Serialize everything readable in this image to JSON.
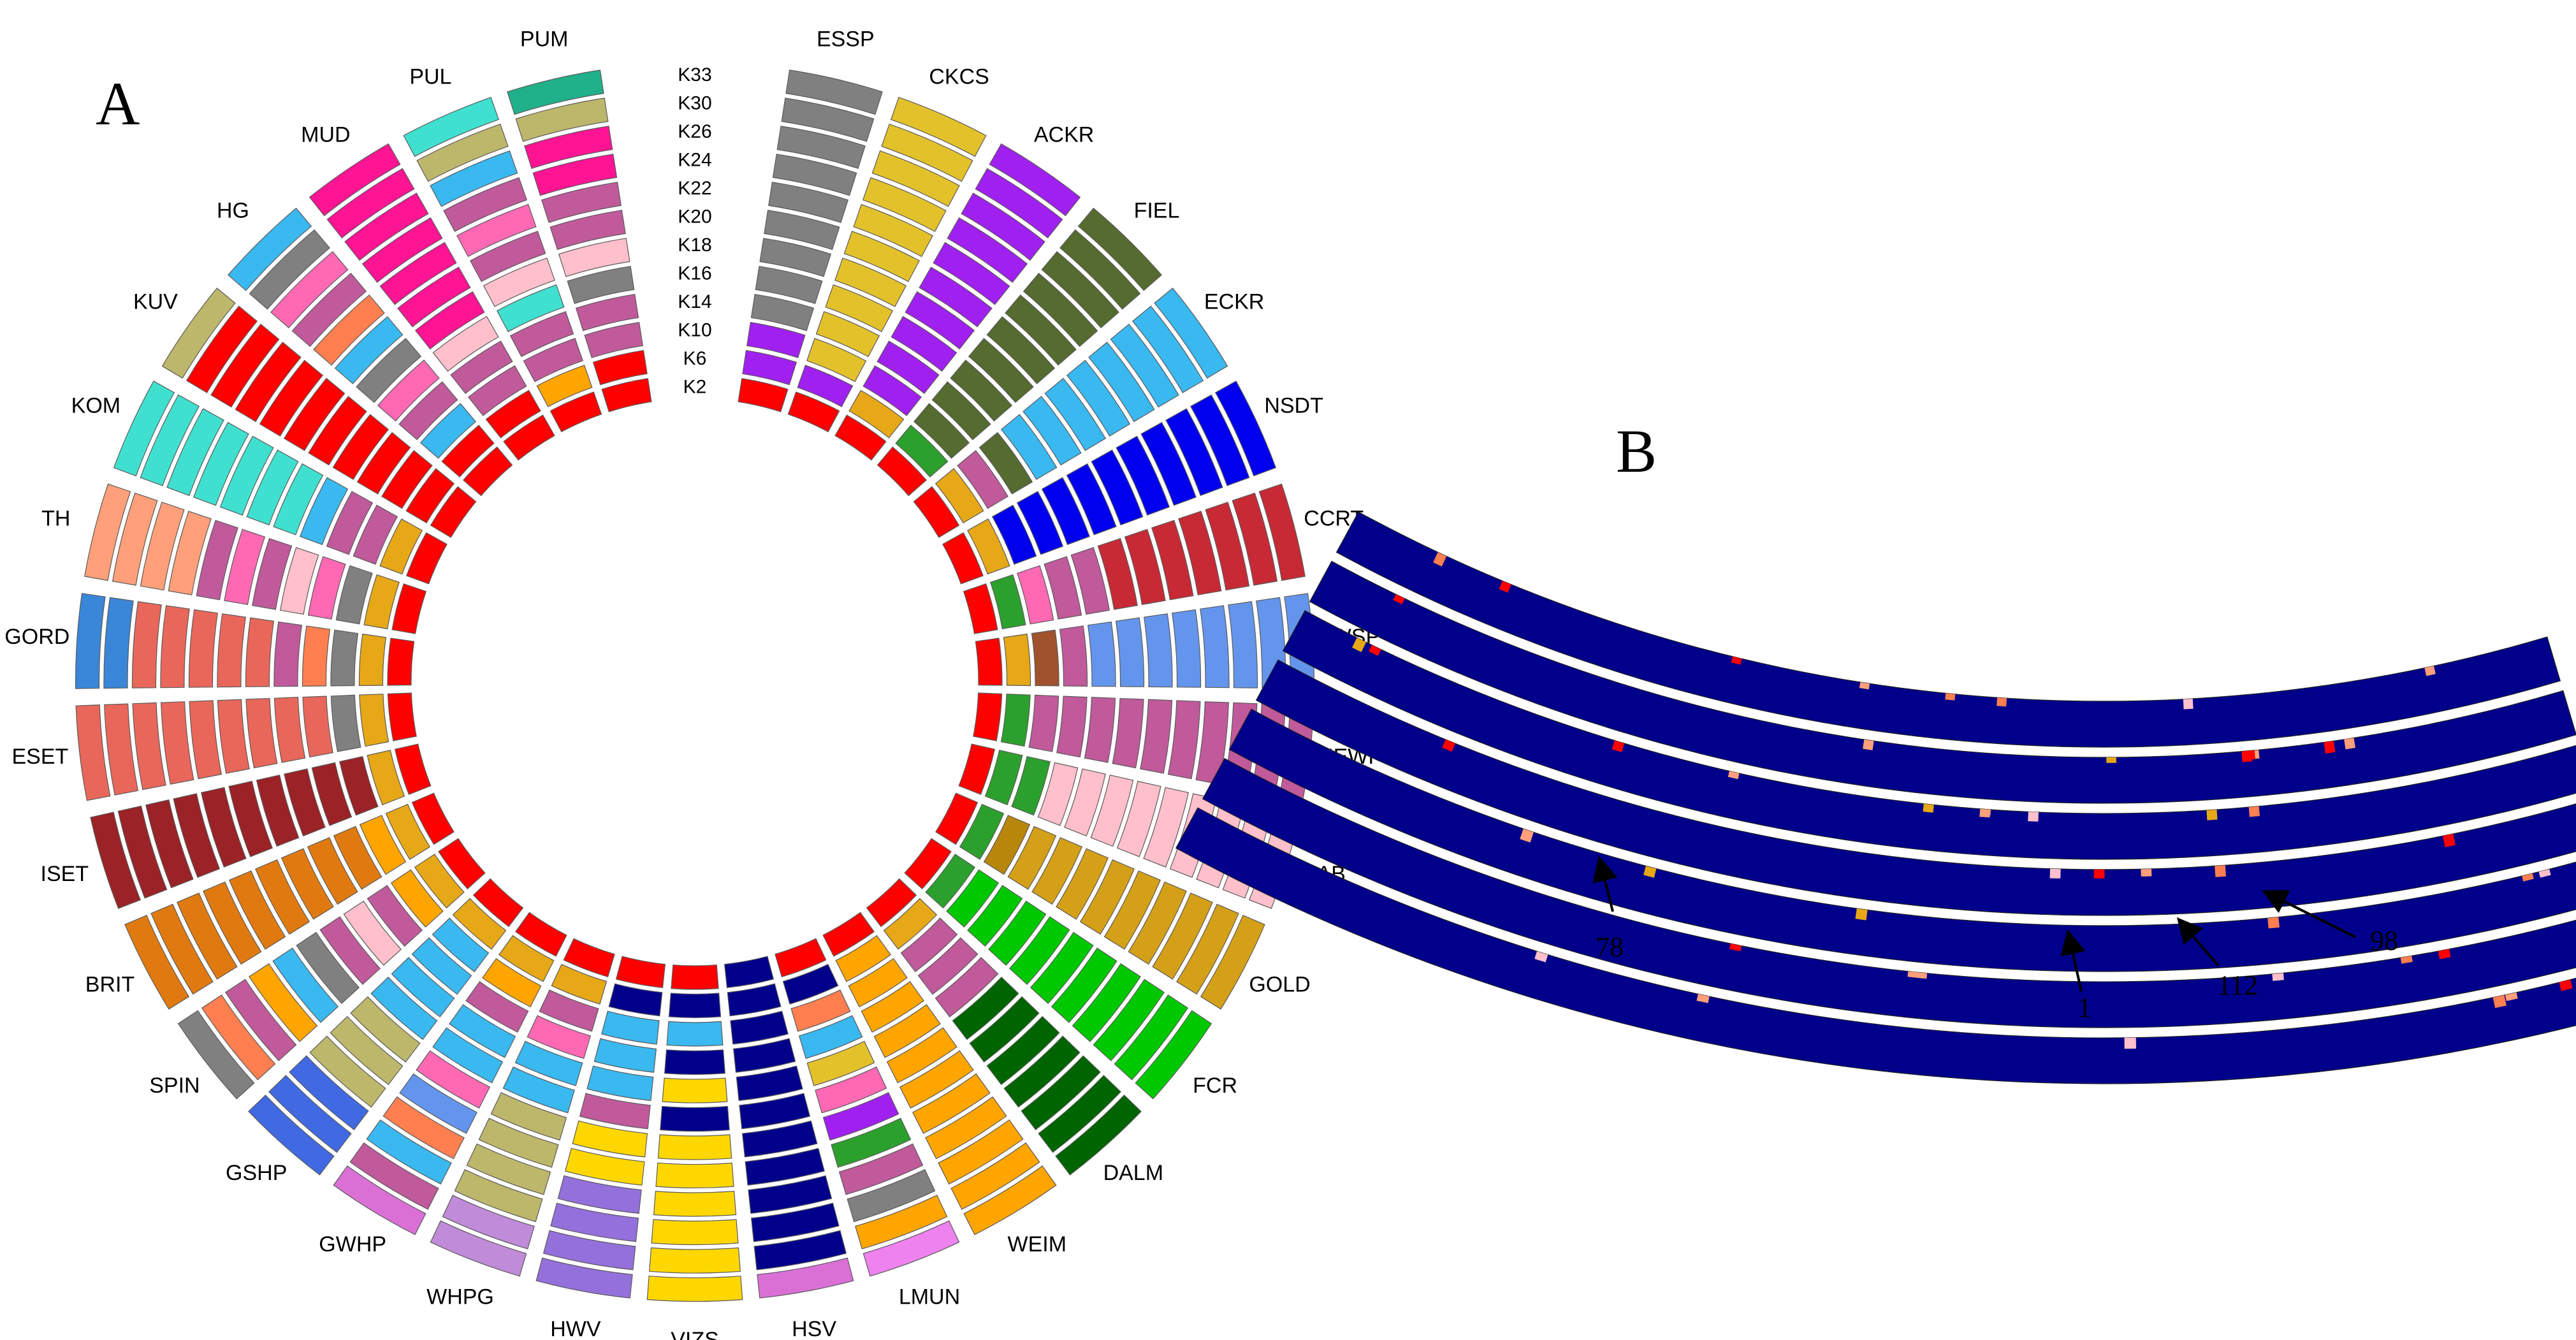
{
  "chart_data": {
    "type": "circular-admixture",
    "panel_a": {
      "letter": "A",
      "k_levels": [
        "K2",
        "K6",
        "K10",
        "K14",
        "K16",
        "K18",
        "K20",
        "K22",
        "K24",
        "K26",
        "K30",
        "K33"
      ],
      "breeds": [
        {
          "name": "ESSP",
          "ring_colors": [
            "#ff0000",
            "#a020f0",
            "#a020f0",
            "#808080",
            "#808080",
            "#808080",
            "#808080",
            "#808080",
            "#808080",
            "#808080",
            "#808080",
            "#808080"
          ]
        },
        {
          "name": "CKCS",
          "ring_colors": [
            "#ff0000",
            "#a020f0",
            "#e3c12b",
            "#e3c12b",
            "#e3c12b",
            "#e3c12b",
            "#e3c12b",
            "#e3c12b",
            "#e3c12b",
            "#e3c12b",
            "#e3c12b",
            "#e3c12b"
          ]
        },
        {
          "name": "ACKR",
          "ring_colors": [
            "#ff0000",
            "#e6a817",
            "#a020f0",
            "#a020f0",
            "#a020f0",
            "#a020f0",
            "#a020f0",
            "#a020f0",
            "#a020f0",
            "#a020f0",
            "#a020f0",
            "#a020f0"
          ]
        },
        {
          "name": "FIEL",
          "ring_colors": [
            "#ff0000",
            "#2ca02c",
            "#556b2f",
            "#556b2f",
            "#556b2f",
            "#556b2f",
            "#556b2f",
            "#556b2f",
            "#556b2f",
            "#556b2f",
            "#556b2f",
            "#556b2f"
          ]
        },
        {
          "name": "ECKR",
          "ring_colors": [
            "#ff0000",
            "#e6a817",
            "#c05a9b",
            "#556b2f",
            "#3ab8f0",
            "#3ab8f0",
            "#3ab8f0",
            "#3ab8f0",
            "#3ab8f0",
            "#3ab8f0",
            "#3ab8f0",
            "#3ab8f0"
          ]
        },
        {
          "name": "NSDT",
          "ring_colors": [
            "#ff0000",
            "#e6a817",
            "#0000ee",
            "#0000ee",
            "#0000ee",
            "#0000ee",
            "#0000ee",
            "#0000ee",
            "#0000ee",
            "#0000ee",
            "#0000ee",
            "#0000ee"
          ]
        },
        {
          "name": "CCRT",
          "ring_colors": [
            "#ff0000",
            "#2ca02c",
            "#ff69b4",
            "#c05a9b",
            "#c05a9b",
            "#c72a35",
            "#c72a35",
            "#c72a35",
            "#c72a35",
            "#c72a35",
            "#c72a35",
            "#c72a35"
          ]
        },
        {
          "name": "IWSP",
          "ring_colors": [
            "#ff0000",
            "#e6a817",
            "#a0522d",
            "#c05a9b",
            "#6495ed",
            "#6495ed",
            "#6495ed",
            "#6495ed",
            "#6495ed",
            "#6495ed",
            "#6495ed",
            "#6495ed"
          ]
        },
        {
          "name": "NEWF",
          "ring_colors": [
            "#ff0000",
            "#2ca02c",
            "#c05a9b",
            "#c05a9b",
            "#c05a9b",
            "#c05a9b",
            "#c05a9b",
            "#c05a9b",
            "#c05a9b",
            "#c05a9b",
            "#c05a9b",
            "#c05a9b"
          ]
        },
        {
          "name": "LAB",
          "ring_colors": [
            "#ff0000",
            "#2ca02c",
            "#2ca02c",
            "#ffc0cb",
            "#ffc0cb",
            "#ffc0cb",
            "#ffc0cb",
            "#ffc0cb",
            "#ffc0cb",
            "#ffc0cb",
            "#ffc0cb",
            "#ffc0cb"
          ]
        },
        {
          "name": "GOLD",
          "ring_colors": [
            "#ff0000",
            "#2ca02c",
            "#b8860b",
            "#d4a017",
            "#d4a017",
            "#d4a017",
            "#d4a017",
            "#d4a017",
            "#d4a017",
            "#d4a017",
            "#d4a017",
            "#d4a017"
          ]
        },
        {
          "name": "FCR",
          "ring_colors": [
            "#ff0000",
            "#2ca02c",
            "#00c800",
            "#00c800",
            "#00c800",
            "#00c800",
            "#00c800",
            "#00c800",
            "#00c800",
            "#00c800",
            "#00c800",
            "#00c800"
          ]
        },
        {
          "name": "DALM",
          "ring_colors": [
            "#ff0000",
            "#e6a817",
            "#c05a9b",
            "#c05a9b",
            "#c05a9b",
            "#006400",
            "#006400",
            "#006400",
            "#006400",
            "#006400",
            "#006400",
            "#006400"
          ]
        },
        {
          "name": "WEIM",
          "ring_colors": [
            "#ff0000",
            "#ffa500",
            "#ffa500",
            "#ffa500",
            "#ffa500",
            "#ffa500",
            "#ffa500",
            "#ffa500",
            "#ffa500",
            "#ffa500",
            "#ffa500",
            "#ffa500"
          ]
        },
        {
          "name": "LMUN",
          "ring_colors": [
            "#ff0000",
            "#00008b",
            "#ff7f50",
            "#3ab8f0",
            "#e3c12b",
            "#ff69b4",
            "#a020f0",
            "#2ca02c",
            "#c05a9b",
            "#808080",
            "#ffa500",
            "#ee82ee"
          ]
        },
        {
          "name": "HSV",
          "ring_colors": [
            "#00008b",
            "#00008b",
            "#00008b",
            "#00008b",
            "#00008b",
            "#00008b",
            "#00008b",
            "#00008b",
            "#00008b",
            "#00008b",
            "#00008b",
            "#da70d6"
          ]
        },
        {
          "name": "VIZS",
          "ring_colors": [
            "#ff0000",
            "#00008b",
            "#3ab8f0",
            "#00008b",
            "#ffd700",
            "#00008b",
            "#ffd700",
            "#ffd700",
            "#ffd700",
            "#ffd700",
            "#ffd700",
            "#ffd700"
          ]
        },
        {
          "name": "HWV",
          "ring_colors": [
            "#ff0000",
            "#00008b",
            "#3ab8f0",
            "#3ab8f0",
            "#3ab8f0",
            "#c05a9b",
            "#ffd700",
            "#ffd700",
            "#9370db",
            "#9370db",
            "#9370db",
            "#9370db"
          ]
        },
        {
          "name": "WHPG",
          "ring_colors": [
            "#ff0000",
            "#e6a817",
            "#c05a9b",
            "#ff69b4",
            "#3ab8f0",
            "#3ab8f0",
            "#bdb76b",
            "#bdb76b",
            "#bdb76b",
            "#bdb76b",
            "#c08bd8",
            "#c08bd8"
          ]
        },
        {
          "name": "GWHP",
          "ring_colors": [
            "#ff0000",
            "#e6a817",
            "#ffa500",
            "#c05a9b",
            "#3ab8f0",
            "#3ab8f0",
            "#ff69b4",
            "#6495ed",
            "#ff7f50",
            "#3ab8f0",
            "#c05a9b",
            "#da70d6"
          ]
        },
        {
          "name": "GSHP",
          "ring_colors": [
            "#ff0000",
            "#e6a817",
            "#3ab8f0",
            "#3ab8f0",
            "#3ab8f0",
            "#3ab8f0",
            "#bdb76b",
            "#bdb76b",
            "#bdb76b",
            "#4169e1",
            "#4169e1",
            "#4169e1"
          ]
        },
        {
          "name": "SPIN",
          "ring_colors": [
            "#ff0000",
            "#e6a817",
            "#ffa500",
            "#c05a9b",
            "#ffc0cb",
            "#c05a9b",
            "#808080",
            "#3ab8f0",
            "#ffa500",
            "#c05a9b",
            "#ff7f50",
            "#808080"
          ]
        },
        {
          "name": "BRIT",
          "ring_colors": [
            "#ff0000",
            "#e6a817",
            "#ffa500",
            "#e07a10",
            "#e07a10",
            "#e07a10",
            "#e07a10",
            "#e07a10",
            "#e07a10",
            "#e07a10",
            "#e07a10",
            "#e07a10"
          ]
        },
        {
          "name": "ISET",
          "ring_colors": [
            "#ff0000",
            "#e6a817",
            "#9b2226",
            "#9b2226",
            "#9b2226",
            "#9b2226",
            "#9b2226",
            "#9b2226",
            "#9b2226",
            "#9b2226",
            "#9b2226",
            "#9b2226"
          ]
        },
        {
          "name": "ESET",
          "ring_colors": [
            "#ff0000",
            "#e6a817",
            "#808080",
            "#e9675a",
            "#e9675a",
            "#e9675a",
            "#e9675a",
            "#e9675a",
            "#e9675a",
            "#e9675a",
            "#e9675a",
            "#e9675a"
          ]
        },
        {
          "name": "GORD",
          "ring_colors": [
            "#ff0000",
            "#e6a817",
            "#808080",
            "#ff7f50",
            "#c05a9b",
            "#e9675a",
            "#e9675a",
            "#e9675a",
            "#e9675a",
            "#e9675a",
            "#3a86d8",
            "#3a86d8"
          ]
        },
        {
          "name": "TH",
          "ring_colors": [
            "#ff0000",
            "#e6a817",
            "#808080",
            "#ff69b4",
            "#ffc0cb",
            "#c05a9b",
            "#ff69b4",
            "#c05a9b",
            "#ffa07a",
            "#ffa07a",
            "#ffa07a",
            "#ffa07a"
          ]
        },
        {
          "name": "KOM",
          "ring_colors": [
            "#ff0000",
            "#e6a817",
            "#c05a9b",
            "#c05a9b",
            "#3ab8f0",
            "#40e0d0",
            "#40e0d0",
            "#40e0d0",
            "#40e0d0",
            "#40e0d0",
            "#40e0d0",
            "#40e0d0"
          ]
        },
        {
          "name": "KUV",
          "ring_colors": [
            "#ff0000",
            "#ff0000",
            "#ff0000",
            "#ff0000",
            "#ff0000",
            "#ff0000",
            "#ff0000",
            "#ff0000",
            "#ff0000",
            "#ff0000",
            "#ff0000",
            "#bdb76b"
          ]
        },
        {
          "name": "HG",
          "ring_colors": [
            "#ff0000",
            "#ff0000",
            "#3ab8f0",
            "#c05a9b",
            "#ff69b4",
            "#808080",
            "#3ab8f0",
            "#ff7f50",
            "#c05a9b",
            "#ff69b4",
            "#808080",
            "#3ab8f0"
          ]
        },
        {
          "name": "MUD",
          "ring_colors": [
            "#ff0000",
            "#ff0000",
            "#c05a9b",
            "#c05a9b",
            "#ffc0cb",
            "#ff1493",
            "#ff1493",
            "#ff1493",
            "#ff1493",
            "#ff1493",
            "#ff1493",
            "#ff1493"
          ]
        },
        {
          "name": "PUL",
          "ring_colors": [
            "#ff0000",
            "#ffa500",
            "#c05a9b",
            "#c05a9b",
            "#40e0d0",
            "#ffc0cb",
            "#c05a9b",
            "#ff69b4",
            "#c05a9b",
            "#3ab8f0",
            "#bdb76b",
            "#40e0d0"
          ]
        },
        {
          "name": "PUM",
          "ring_colors": [
            "#ff0000",
            "#ff0000",
            "#c05a9b",
            "#c05a9b",
            "#808080",
            "#ffc0cb",
            "#c05a9b",
            "#c05a9b",
            "#ff1493",
            "#ff1493",
            "#bdb76b",
            "#20b08a"
          ]
        }
      ]
    },
    "panel_b": {
      "letter": "B",
      "ring_count": 7,
      "base_color": "#00008b",
      "arrows": [
        {
          "label": "78"
        },
        {
          "label": "1"
        },
        {
          "label": "112"
        },
        {
          "label": "98"
        }
      ]
    }
  }
}
